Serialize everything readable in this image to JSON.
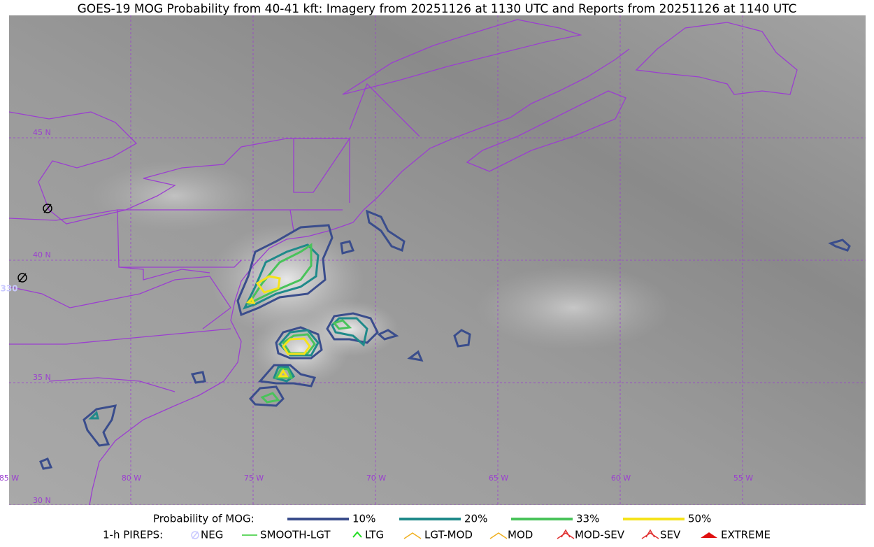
{
  "title": "GOES-19 MOG Probability from 40-41 kft: Imagery from 20251126 at 1130 UTC and Reports from 20251126 at 1140 UTC",
  "map": {
    "lat_labels": [
      "45 N",
      "40 N",
      "35 N",
      "30 N"
    ],
    "lon_labels": [
      "85 W",
      "80 W",
      "75 W",
      "70 W",
      "65 W",
      "60 W",
      "55 W"
    ],
    "station_label": "330"
  },
  "legend": {
    "mog_title": "Probability of MOG:",
    "mog_levels": [
      {
        "label": "10%",
        "color": "#3a4d8c"
      },
      {
        "label": "20%",
        "color": "#1f8a8a"
      },
      {
        "label": "33%",
        "color": "#49c35a"
      },
      {
        "label": "50%",
        "color": "#f5e31a"
      }
    ],
    "pirep_title": "1-h PIREPS:",
    "pireps": [
      {
        "label": "NEG",
        "color": "#c8c8ff"
      },
      {
        "label": "SMOOTH-LGT",
        "color": "#33cc33"
      },
      {
        "label": "LTG",
        "color": "#22dd22"
      },
      {
        "label": "LGT-MOD",
        "color": "#f0b020"
      },
      {
        "label": "MOD",
        "color": "#f0b020"
      },
      {
        "label": "MOD-SEV",
        "color": "#e03030"
      },
      {
        "label": "SEV",
        "color": "#e03030"
      },
      {
        "label": "EXTREME",
        "color": "#e01010"
      }
    ]
  }
}
